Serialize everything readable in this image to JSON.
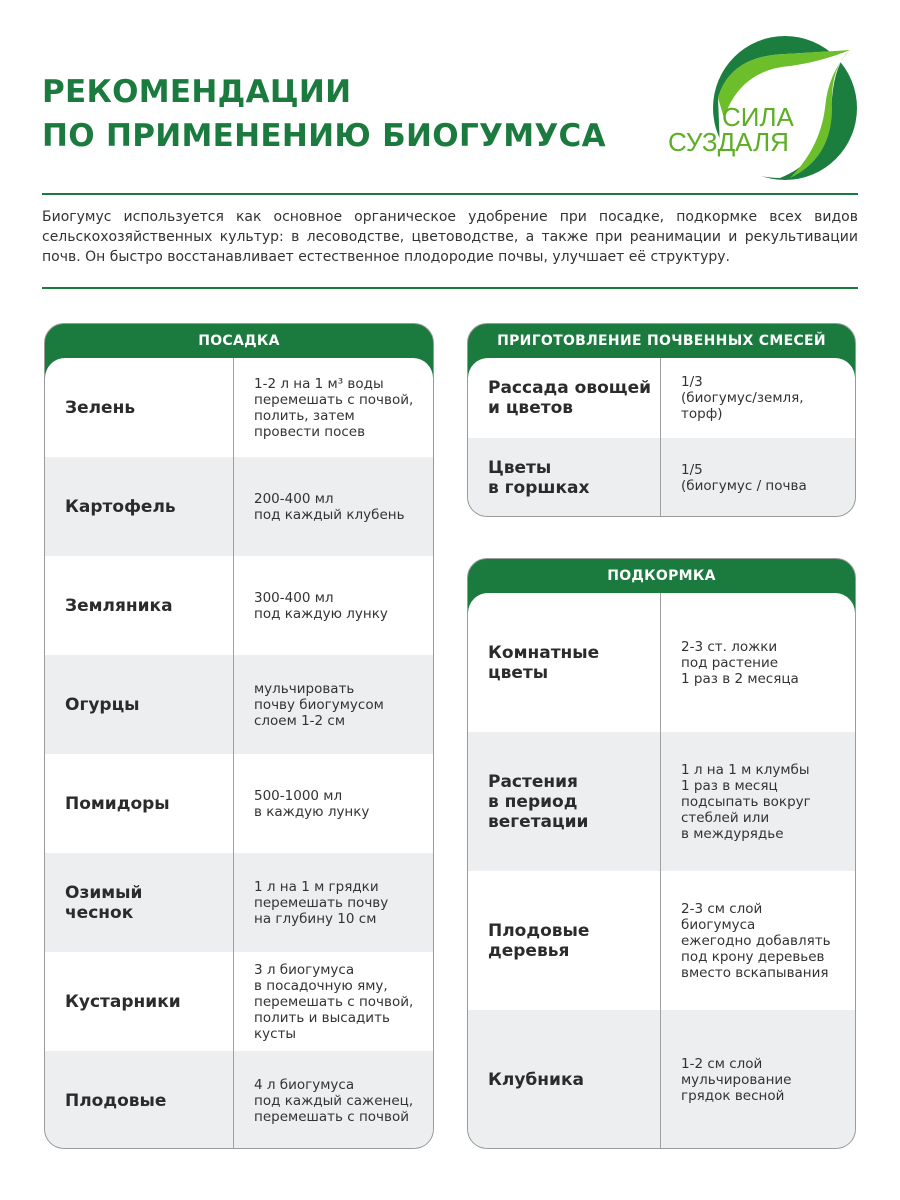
{
  "title": [
    "РЕКОМЕНДАЦИИ",
    "ПО ПРИМЕНЕНИЮ БИОГУМУСА"
  ],
  "logo": {
    "line1": "СИЛА",
    "line2": "СУЗДАЛЯ"
  },
  "intro": "Биогумус используется как основное органическое удобрение при посадке, подкормке всех видов сельскохозяйственных культур: в лесоводстве, цветоводстве, а также при реанимации и рекультивации почв. Он быстро восстанавливает естественное плодородие почвы, улучшает её структуру.",
  "colors": {
    "brand_green": "#1b7a3d",
    "row_alt": "#eceef0"
  },
  "planting": {
    "header": "ПОСАДКА",
    "rows": [
      {
        "name": "Зелень",
        "value": "1-2 л на 1 м³ воды\nперемешать с почвой,\nполить, затем\nпровести посев"
      },
      {
        "name": "Картофель",
        "value": "200-400 мл\nпод каждый клубень"
      },
      {
        "name": "Земляника",
        "value": "300-400 мл\nпод каждую лунку"
      },
      {
        "name": "Огурцы",
        "value": "мульчировать\nпочву биогумусом\nслоем 1-2 см"
      },
      {
        "name": "Помидоры",
        "value": "500-1000 мл\nв каждую лунку"
      },
      {
        "name": "Озимый\nчеснок",
        "value": "1 л на 1 м грядки\nперемешать почву\nна глубину 10 см"
      },
      {
        "name": "Кустарники",
        "value": "3 л биогумуса\nв посадочную яму,\nперемешать с почвой,\nполить и высадить\nкусты"
      },
      {
        "name": "Плодовые",
        "value": "4 л биогумуса\nпод каждый саженец,\nперемешать с почвой"
      }
    ]
  },
  "mixes": {
    "header": "ПРИГОТОВЛЕНИЕ ПОЧВЕННЫХ СМЕСЕЙ",
    "rows": [
      {
        "name": "Рассада овощей\nи цветов",
        "value": "1/3\n(биогумус/земля,\nторф)"
      },
      {
        "name": "Цветы\nв горшках",
        "value": "1/5\n(биогумус / почва"
      }
    ]
  },
  "feeding": {
    "header": "ПОДКОРМКА",
    "rows": [
      {
        "name": "Комнатные\nцветы",
        "value": "2-3 ст. ложки\nпод растение\n1 раз в 2 месяца"
      },
      {
        "name": "Растения\nв период\nвегетации",
        "value": "1 л на 1 м клумбы\n1 раз в месяц\nподсыпать вокруг\nстеблей или\nв междурядье"
      },
      {
        "name": "Плодовые\nдеревья",
        "value": "2-3 см слой\nбиогумуса\nежегодно добавлять\nпод крону деревьев\nвместо вскапывания"
      },
      {
        "name": "Клубника",
        "value": "1-2 см слой\nмульчирование\nгрядок весной"
      }
    ]
  }
}
